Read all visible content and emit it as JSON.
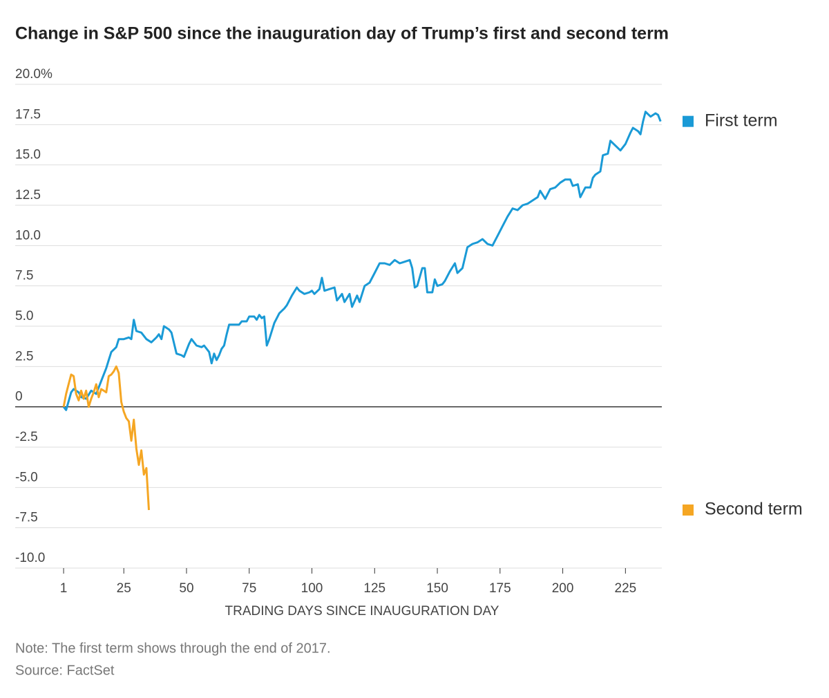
{
  "chart_data": {
    "type": "line",
    "title": "Change in S&P 500 since the inauguration day of Trump’s first and second term",
    "x_label": "TRADING DAYS SINCE INAUGURATION DAY",
    "note": "Note: The first term shows through the end of 2017.",
    "source": "Source: FactSet",
    "xlim": [
      -18.3,
      239.5
    ],
    "xticks": [
      1,
      25,
      50,
      75,
      100,
      125,
      150,
      175,
      200,
      225
    ],
    "ylim": [
      -10,
      20
    ],
    "yticks": [
      {
        "value": 20,
        "label": "20.0%"
      },
      17.5,
      {
        "value": 15,
        "label": "15.0"
      },
      12.5,
      {
        "value": 10,
        "label": "10.0"
      },
      7.5,
      {
        "value": 5,
        "label": "5.0"
      },
      2.5,
      0,
      -2.5,
      {
        "value": -5,
        "label": "-5.0"
      },
      -7.5,
      {
        "value": -10,
        "label": "-10.0"
      }
    ],
    "grid": true,
    "legend": "right",
    "series": [
      {
        "name": "First term",
        "color": "#1a9ad6",
        "x": [
          1,
          2,
          4,
          5,
          7,
          8,
          10,
          12,
          14,
          16,
          18,
          19,
          20,
          22,
          23,
          25,
          27,
          28,
          29,
          30,
          32,
          34,
          36,
          38,
          39,
          40,
          41,
          43,
          44,
          46,
          48,
          49,
          51,
          52,
          54,
          56,
          57,
          59,
          60,
          61,
          62,
          63,
          64,
          65,
          66,
          67,
          69,
          71,
          72,
          74,
          75,
          77,
          78,
          79,
          80,
          81,
          82,
          83,
          85,
          87,
          89,
          90,
          92,
          94,
          95,
          97,
          99,
          100,
          101,
          103,
          104,
          105,
          107,
          109,
          110,
          112,
          113,
          115,
          116,
          118,
          119,
          121,
          123,
          125,
          127,
          129,
          131,
          133,
          135,
          137,
          139,
          140,
          141,
          142,
          144,
          145,
          146,
          148,
          149,
          150,
          152,
          153,
          155,
          157,
          158,
          160,
          162,
          164,
          166,
          168,
          170,
          172,
          174,
          176,
          178,
          180,
          182,
          184,
          186,
          188,
          190,
          191,
          193,
          195,
          197,
          199,
          201,
          203,
          204,
          206,
          207,
          209,
          211,
          212,
          213,
          215,
          216,
          218,
          219,
          221,
          223,
          225,
          227,
          228,
          230,
          231,
          232,
          233,
          235,
          237,
          238,
          239
        ],
        "values": [
          0,
          -0.2,
          0.9,
          1.1,
          0.9,
          0.6,
          0.5,
          1.0,
          0.8,
          1.6,
          2.4,
          2.9,
          3.4,
          3.7,
          4.2,
          4.2,
          4.3,
          4.2,
          5.4,
          4.7,
          4.6,
          4.2,
          4.0,
          4.3,
          4.5,
          4.2,
          5.0,
          4.8,
          4.6,
          3.3,
          3.2,
          3.1,
          3.9,
          4.2,
          3.8,
          3.7,
          3.8,
          3.4,
          2.7,
          3.3,
          2.9,
          3.2,
          3.6,
          3.8,
          4.5,
          5.1,
          5.1,
          5.1,
          5.3,
          5.3,
          5.6,
          5.6,
          5.4,
          5.7,
          5.5,
          5.6,
          3.8,
          4.2,
          5.2,
          5.8,
          6.1,
          6.3,
          6.9,
          7.4,
          7.2,
          7.0,
          7.1,
          7.2,
          7.0,
          7.3,
          8.0,
          7.2,
          7.3,
          7.4,
          6.6,
          7.0,
          6.5,
          7.0,
          6.2,
          6.9,
          6.5,
          7.5,
          7.7,
          8.3,
          8.9,
          8.9,
          8.8,
          9.1,
          8.9,
          9.0,
          9.1,
          8.6,
          7.4,
          7.5,
          8.6,
          8.6,
          7.1,
          7.1,
          7.9,
          7.5,
          7.6,
          7.8,
          8.4,
          8.9,
          8.3,
          8.6,
          9.9,
          10.1,
          10.2,
          10.4,
          10.1,
          10.0,
          10.6,
          11.2,
          11.8,
          12.3,
          12.2,
          12.5,
          12.6,
          12.8,
          13.0,
          13.4,
          12.9,
          13.5,
          13.6,
          13.9,
          14.1,
          14.1,
          13.7,
          13.8,
          13.0,
          13.6,
          13.6,
          14.2,
          14.4,
          14.6,
          15.6,
          15.7,
          16.5,
          16.2,
          15.9,
          16.3,
          17.0,
          17.3,
          17.1,
          16.9,
          17.7,
          18.3,
          18.0,
          18.2,
          18.1,
          17.7
        ]
      },
      {
        "name": "Second term",
        "color": "#f5a623",
        "x": [
          1,
          2,
          3,
          4,
          5,
          6,
          7,
          8,
          9,
          10,
          11,
          12,
          13,
          14,
          15,
          16,
          17,
          18,
          19,
          20,
          21,
          22,
          23,
          24,
          25,
          26,
          27,
          28,
          29,
          30,
          31,
          32,
          33,
          34,
          35
        ],
        "values": [
          0,
          0.8,
          1.4,
          2.0,
          1.9,
          0.8,
          0.4,
          1.0,
          0.5,
          1.0,
          0,
          0.5,
          0.9,
          1.4,
          0.6,
          1.1,
          1.0,
          0.9,
          1.9,
          2.0,
          2.2,
          2.5,
          2.1,
          0.3,
          -0.3,
          -0.7,
          -0.9,
          -2.1,
          -0.8,
          -2.6,
          -3.6,
          -2.7,
          -4.2,
          -3.8,
          -6.4
        ]
      }
    ]
  }
}
